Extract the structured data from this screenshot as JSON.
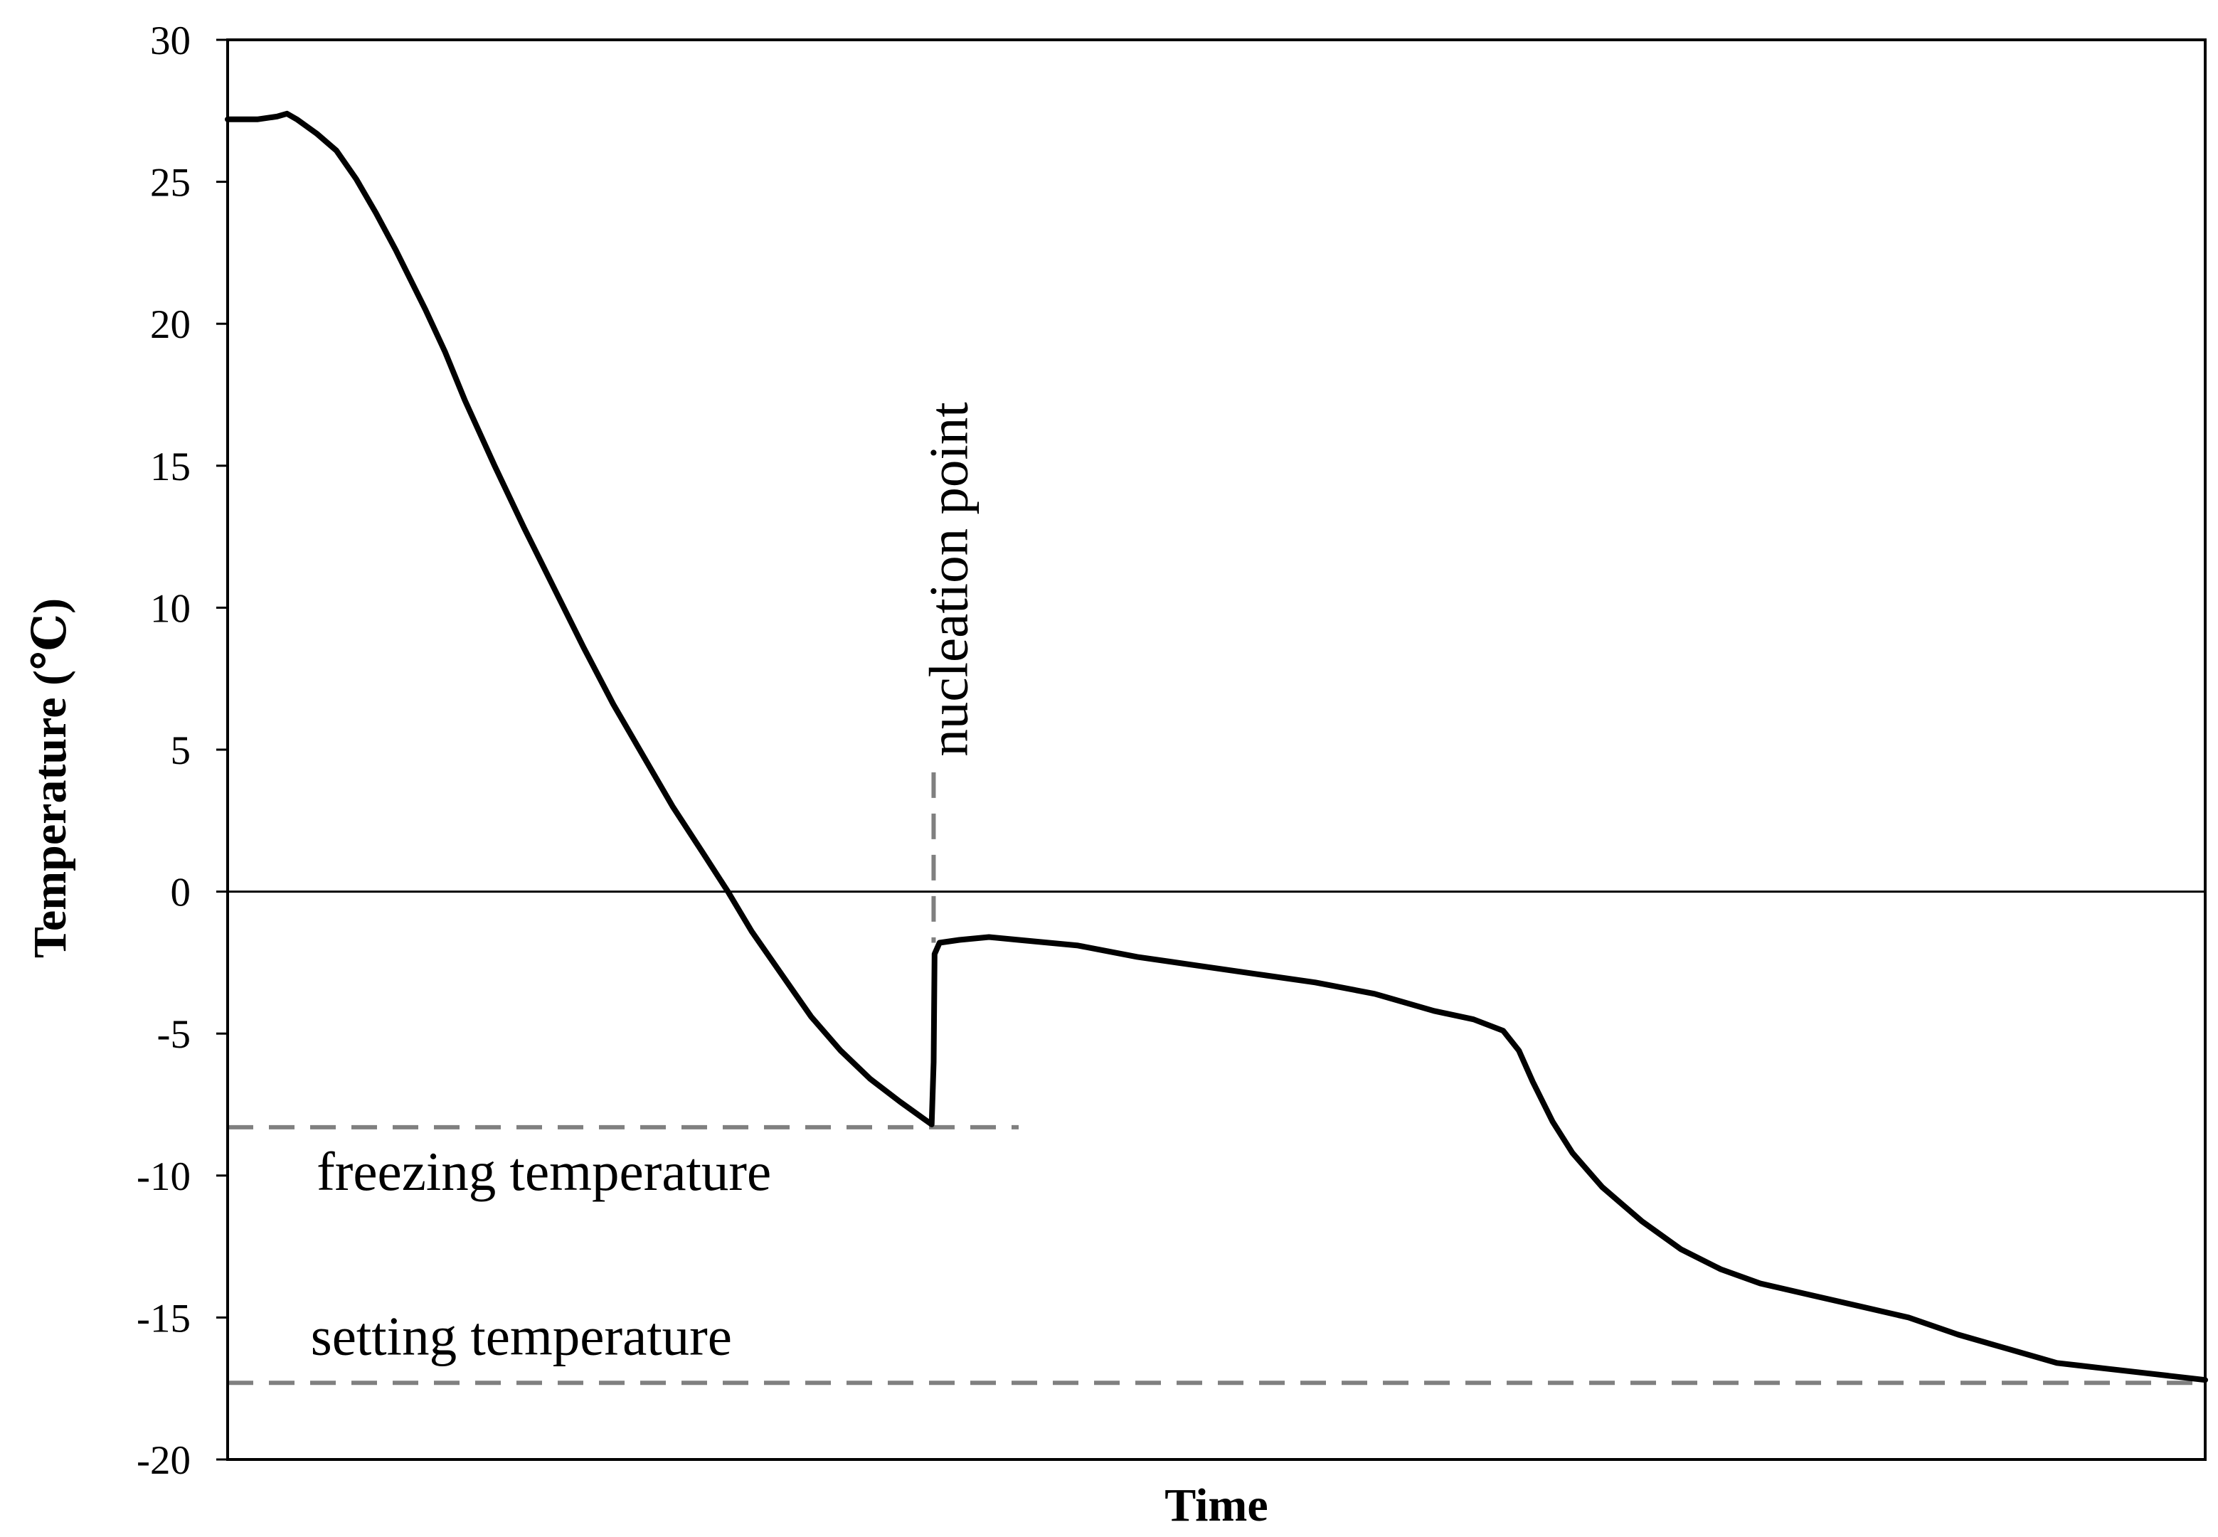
{
  "chart_data": {
    "type": "line",
    "title": "",
    "xlabel": "Time",
    "ylabel": "Temperature (℃)",
    "xlim": [
      0,
      100
    ],
    "ylim": [
      -20,
      30
    ],
    "yticks": [
      30,
      25,
      20,
      15,
      10,
      5,
      0,
      -5,
      -10,
      -15,
      -20
    ],
    "grid": false,
    "series": [
      {
        "name": "temperature",
        "color": "#000000",
        "points": [
          [
            0,
            27.2
          ],
          [
            1.5,
            27.2
          ],
          [
            2.5,
            27.3
          ],
          [
            3,
            27.4
          ],
          [
            3.5,
            27.2
          ],
          [
            4.5,
            26.7
          ],
          [
            5.5,
            26.1
          ],
          [
            6.5,
            25.1
          ],
          [
            7.5,
            23.9
          ],
          [
            8.5,
            22.6
          ],
          [
            10,
            20.5
          ],
          [
            11,
            19.0
          ],
          [
            12,
            17.3
          ],
          [
            13.5,
            15.0
          ],
          [
            15,
            12.8
          ],
          [
            16.5,
            10.7
          ],
          [
            18,
            8.6
          ],
          [
            19.5,
            6.6
          ],
          [
            21,
            4.8
          ],
          [
            22.5,
            3.0
          ],
          [
            24,
            1.4
          ],
          [
            25.3,
            0.0
          ],
          [
            26.5,
            -1.4
          ],
          [
            28,
            -2.9
          ],
          [
            29.5,
            -4.4
          ],
          [
            31,
            -5.6
          ],
          [
            32.5,
            -6.6
          ],
          [
            34,
            -7.4
          ],
          [
            35.2,
            -8.0
          ],
          [
            35.6,
            -8.2
          ],
          [
            35.7,
            -6.0
          ],
          [
            35.75,
            -2.2
          ],
          [
            36,
            -1.8
          ],
          [
            37,
            -1.7
          ],
          [
            38.5,
            -1.6
          ],
          [
            40,
            -1.7
          ],
          [
            43,
            -1.9
          ],
          [
            46,
            -2.3
          ],
          [
            49,
            -2.6
          ],
          [
            52,
            -2.9
          ],
          [
            55,
            -3.2
          ],
          [
            58,
            -3.6
          ],
          [
            61,
            -4.2
          ],
          [
            63,
            -4.5
          ],
          [
            64.5,
            -4.9
          ],
          [
            65.3,
            -5.6
          ],
          [
            66,
            -6.7
          ],
          [
            67,
            -8.1
          ],
          [
            68,
            -9.2
          ],
          [
            69.5,
            -10.4
          ],
          [
            71.5,
            -11.6
          ],
          [
            73.5,
            -12.6
          ],
          [
            75.5,
            -13.3
          ],
          [
            77.5,
            -13.8
          ],
          [
            80,
            -14.2
          ],
          [
            82.5,
            -14.6
          ],
          [
            85,
            -15.0
          ],
          [
            87.5,
            -15.6
          ],
          [
            90,
            -16.1
          ],
          [
            92.5,
            -16.6
          ],
          [
            95,
            -16.8
          ],
          [
            97.5,
            -17.0
          ],
          [
            100,
            -17.2
          ]
        ]
      }
    ],
    "reference_lines": [
      {
        "name": "zero-line",
        "orientation": "horizontal",
        "value": 0,
        "x_start": 0,
        "x_end": 100,
        "style": "solid",
        "color": "#000000"
      },
      {
        "name": "freezing-temperature-line",
        "orientation": "horizontal",
        "value": -8.3,
        "x_start": 0,
        "x_end": 40,
        "style": "dashed",
        "color": "#808080"
      },
      {
        "name": "setting-temperature-line",
        "orientation": "horizontal",
        "value": -17.3,
        "x_start": 0,
        "x_end": 100,
        "style": "dashed",
        "color": "#808080"
      },
      {
        "name": "nucleation-point-line",
        "orientation": "vertical",
        "value": 35.7,
        "y_start": 4.2,
        "y_end": -1.8,
        "style": "dashed",
        "color": "#808080"
      }
    ],
    "annotations": [
      {
        "name": "freezing-temperature-label",
        "text": "freezing temperature",
        "x": 4.5,
        "y": -10.5,
        "rotation": 0
      },
      {
        "name": "setting-temperature-label",
        "text": "setting temperature",
        "x": 4.2,
        "y": -16.3,
        "rotation": 0
      },
      {
        "name": "nucleation-point-label",
        "text": "nucleation point",
        "x": 37.4,
        "y": 11.0,
        "rotation": -90
      }
    ]
  }
}
